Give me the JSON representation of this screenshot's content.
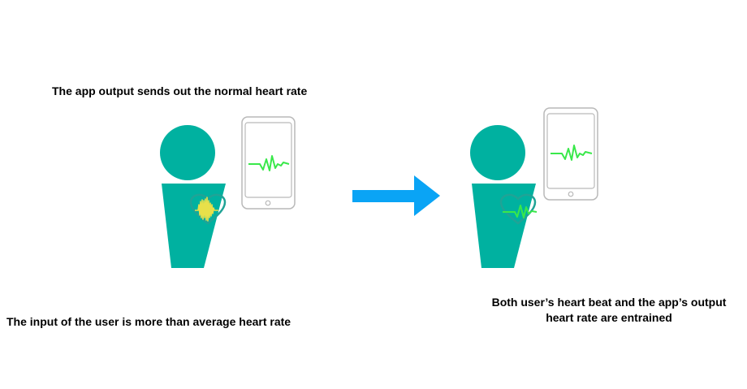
{
  "captions": {
    "app_output": "The app output sends out the normal heart rate",
    "user_input": "The input of the user is more than average heart rate",
    "entrained_line1": "Both user’s heart beat and the app’s output",
    "entrained_line2": "heart rate  are entrained"
  },
  "colors": {
    "person": "#00B1A0",
    "heart_outline": "#20A396",
    "fast_pulse": "#E8E04A",
    "normal_pulse": "#39E84A",
    "arrow": "#0AA4F5",
    "phone_outline": "#B9B9B9"
  },
  "icons": [
    "person-icon",
    "phone-icon",
    "heart-icon",
    "pulse-wave-icon",
    "arrow-right-icon"
  ]
}
